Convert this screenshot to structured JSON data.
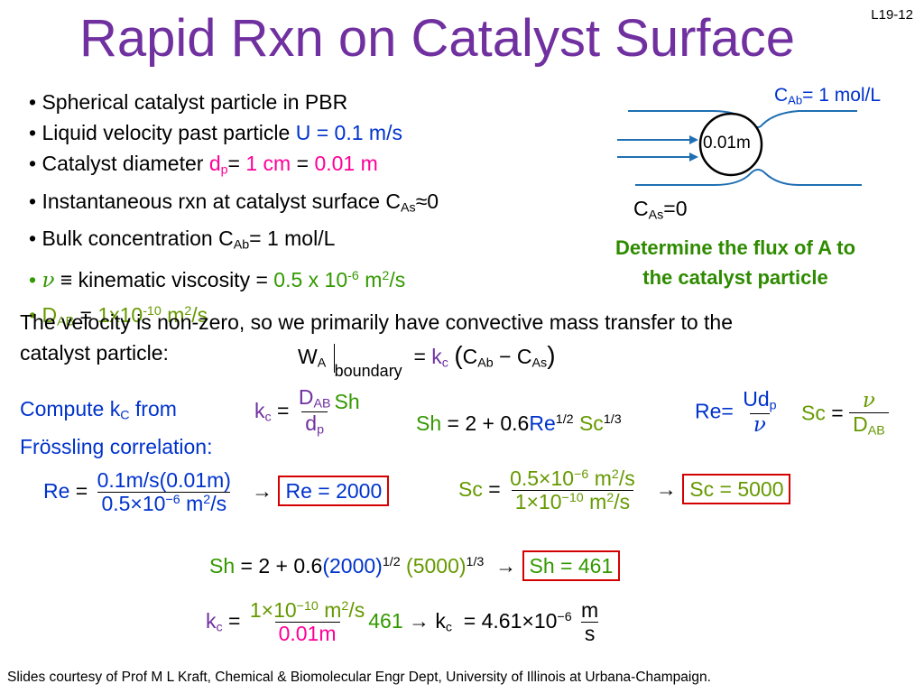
{
  "slide_number": "L19-12",
  "title": "Rapid Rxn on Catalyst Surface",
  "bullets": {
    "b1": "Spherical catalyst particle in PBR",
    "b2_text": "Liquid velocity past particle",
    "b2_value": "U = 0.1 m/s",
    "b3_text": "Catalyst diameter",
    "b3_sym": "d",
    "b3_sub": "p",
    "b3_eq": "=",
    "b3_v1": "1 cm",
    "b3_eq2": "=",
    "b3_v2": "0.01 m",
    "b4_text": "Instantaneous rxn at catalyst surface C",
    "b4_sub": "As",
    "b4_end": "≈0",
    "b5_text": "Bulk concentration C",
    "b5_sub": "Ab",
    "b5_end": "= 1 mol/L",
    "b6_sym": "ν",
    "b6_text": "≡ kinematic viscosity =",
    "b6_value": "0.5 x 10",
    "b6_exp": "-6",
    "b6_unit": "m",
    "b6_unit_exp": "2",
    "b6_unit_end": "/s",
    "b7_sym": "D",
    "b7_sub": "AB",
    "b7_eq": "=",
    "b7_value": "1x10",
    "b7_exp": "-10",
    "b7_unit": "m",
    "b7_unit_exp": "2",
    "b7_unit_end": "/s"
  },
  "diagram": {
    "cab_label": "C",
    "cab_sub": "Ab",
    "cab_end": "= 1 mol/L",
    "particle_label": "0.01m",
    "cas_label": "C",
    "cas_sub": "As",
    "cas_end": "=0"
  },
  "task": {
    "line1": "Determine the flux of A to",
    "line2": "the catalyst particle"
  },
  "paragraph": {
    "line1": "The velocity is non-zero, so we primarily have convective mass transfer to the",
    "line2": "catalyst particle:"
  },
  "flux_eq": {
    "w": "W",
    "w_sub": "A",
    "boundary": "boundary",
    "eq": "=",
    "k": "k",
    "k_sub": "c",
    "c1": "C",
    "c1_sub": "Ab",
    "minus": "−",
    "c2": "C",
    "c2_sub": "As"
  },
  "compute": {
    "line1a": "Compute k",
    "line1_sub": "C",
    "line1b": " from",
    "line2": "Frössling correlation:"
  },
  "eq_kc": {
    "k": "k",
    "k_sub": "c",
    "eq": "=",
    "num": "D",
    "num_sub": "AB",
    "den": "d",
    "den_sub": "p",
    "sh": "Sh"
  },
  "eq_sh": {
    "lhs": "Sh",
    "eq": "=",
    "two": "2",
    "plus": "+",
    "coef": "0.6",
    "re": "Re",
    "re_exp": "1/2",
    "sc": "Sc",
    "sc_exp": "1/3"
  },
  "eq_re_def": {
    "lhs": "Re=",
    "num": "Ud",
    "num_sub": "p",
    "den": "ν"
  },
  "eq_sc_def": {
    "lhs": "Sc",
    "eq": "=",
    "num": "ν",
    "den": "D",
    "den_sub": "AB"
  },
  "calc_re": {
    "lhs": "Re",
    "eq": "=",
    "num": "0.1m/s(0.01m)",
    "den_a": "0.5×10",
    "den_exp": "−6",
    "den_b": " m",
    "den_exp2": "2",
    "den_c": "/s",
    "arrow": "→",
    "result": "Re = 2000"
  },
  "calc_sc": {
    "lhs": "Sc",
    "eq": "=",
    "num_a": "0.5×10",
    "num_exp": "−6",
    "num_b": " m",
    "num_exp2": "2",
    "num_c": "/s",
    "den_a": "1×10",
    "den_exp": "−10",
    "den_b": " m",
    "den_exp2": "2",
    "den_c": "/s",
    "arrow": "→",
    "result": "Sc = 5000"
  },
  "calc_sh": {
    "lhs": "Sh",
    "eq": "=",
    "a": "2",
    "plus": "+",
    "b": "0.6",
    "re": "(2000)",
    "re_exp": "1/2",
    "sc": "(5000)",
    "sc_exp": "1/3",
    "arrow": "→",
    "result": "Sh = 461"
  },
  "calc_kc": {
    "k": "k",
    "k_sub": "c",
    "eq": "=",
    "num_a": "1×10",
    "num_exp": "−10",
    "num_b": " m",
    "num_exp2": "2",
    "num_c": "/s",
    "den": "0.01m",
    "factor": "461",
    "arrow": "→",
    "k2": "k",
    "k2_sub": "c",
    "eq2": "=",
    "value": "4.61×10",
    "value_exp": "−6",
    "unit_num": "m",
    "unit_den": "s"
  },
  "footer": "Slides courtesy of Prof M L Kraft, Chemical & Biomolecular Engr Dept, University of Illinois at Urbana-Champaign.",
  "colors": {
    "title": "#7030a0",
    "blue": "#0033cc",
    "pink": "#ff0099",
    "green": "#339900",
    "box": "#d40000"
  }
}
